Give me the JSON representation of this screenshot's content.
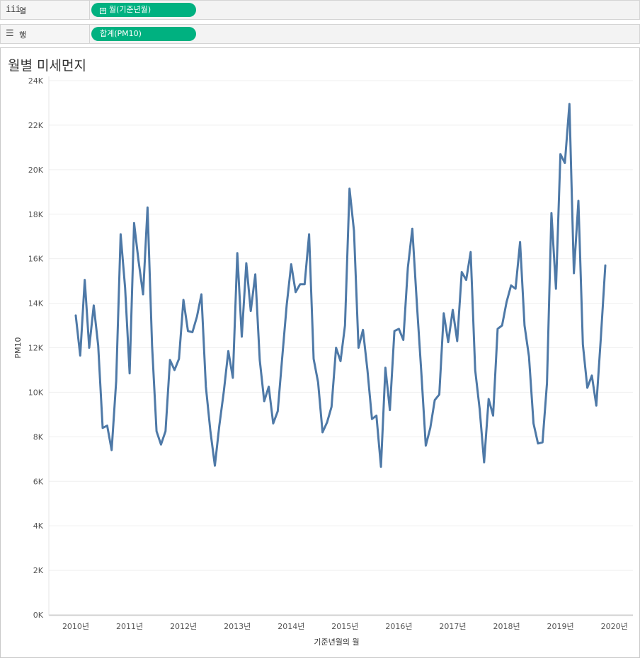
{
  "columns_shelf": {
    "icon": "columns-icon",
    "label": "열",
    "pill": "월(기준년월)",
    "pill_icon": "expand-plus-icon"
  },
  "rows_shelf": {
    "icon": "rows-icon",
    "label": "행",
    "pill": "합계(PM10)"
  },
  "chart_data": {
    "type": "line",
    "title": "월별 미세먼지",
    "xlabel": "기준년월의 월",
    "ylabel": "PM10",
    "ylim": [
      0,
      24000
    ],
    "y_ticks": [
      "0K",
      "2K",
      "4K",
      "6K",
      "8K",
      "10K",
      "12K",
      "14K",
      "16K",
      "18K",
      "20K",
      "22K",
      "24K"
    ],
    "x_ticks": [
      "2010년",
      "2011년",
      "2012년",
      "2013년",
      "2014년",
      "2015년",
      "2016년",
      "2017년",
      "2018년",
      "2019년",
      "2020년"
    ],
    "x_start": "2010-01",
    "grid": true,
    "line_color": "#4e79a7",
    "series": [
      {
        "values": [
          13450,
          11650,
          15050,
          12000,
          13900,
          12100,
          8400,
          8500,
          7400,
          10500,
          17100,
          14700,
          10850,
          17600,
          15900,
          14400,
          18300,
          12100,
          8250,
          7650,
          8250,
          11450,
          11000,
          11500,
          14150,
          12750,
          12700,
          13400,
          14400,
          10250,
          8250,
          6700,
          8500,
          10050,
          11850,
          10650,
          16250,
          12500,
          15800,
          13650,
          15300,
          11450,
          9600,
          10250,
          8600,
          9150,
          11550,
          13900,
          15750,
          14500,
          14850,
          14850,
          17100,
          11500,
          10450,
          8200,
          8650,
          9350,
          12000,
          11400,
          13000,
          19150,
          17250,
          12000,
          12800,
          11000,
          8800,
          8950,
          6650,
          11100,
          9200,
          12750,
          12850,
          12350,
          15600,
          17350,
          14000,
          10900,
          7600,
          8400,
          9650,
          9900,
          13550,
          12250,
          13700,
          12300,
          15400,
          15050,
          16300,
          11000,
          9250,
          6850,
          9700,
          8950,
          12850,
          13000,
          14050,
          14800,
          14650,
          16750,
          13000,
          11600,
          8600,
          7700,
          7750,
          10400,
          18050,
          14650,
          20700,
          20300,
          22950,
          15350,
          18600,
          12150,
          10200,
          10750,
          9400,
          12450,
          15700
        ]
      }
    ]
  }
}
